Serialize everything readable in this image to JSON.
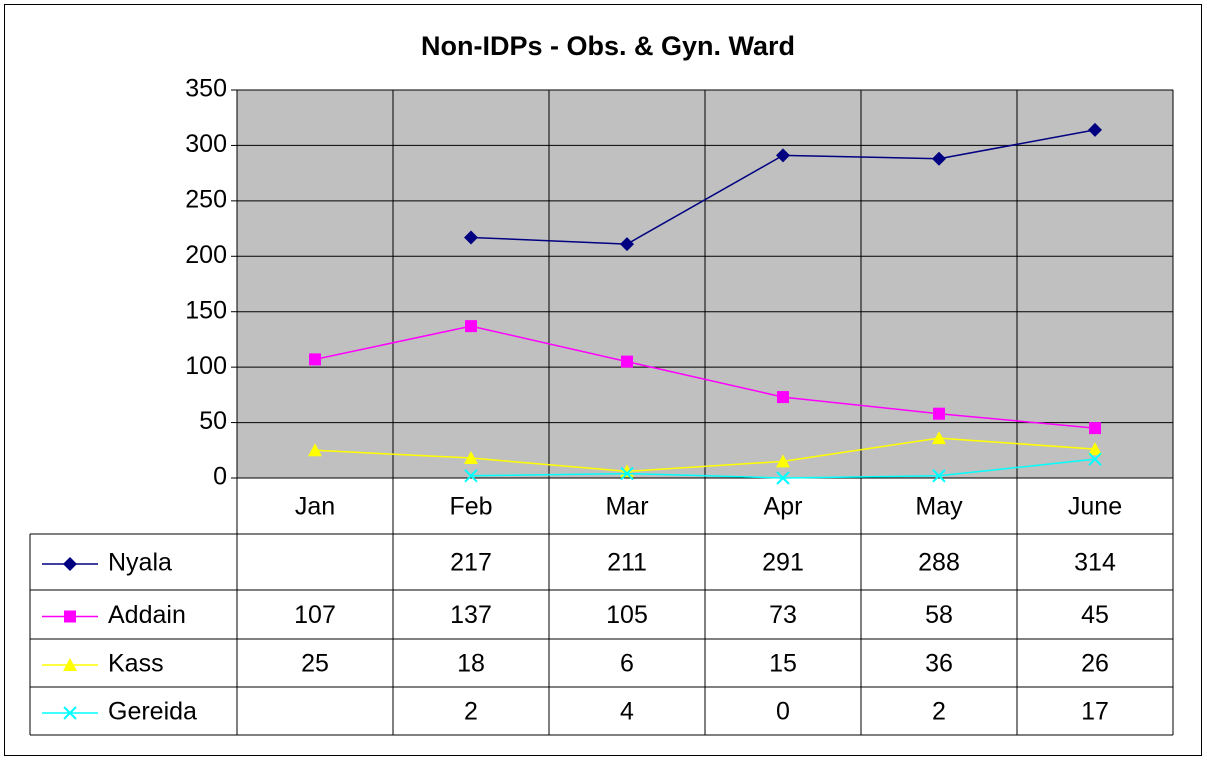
{
  "chart_data": {
    "type": "line",
    "title": "Non-IDPs  - Obs. & Gyn. Ward",
    "categories": [
      "Jan",
      "Feb",
      "Mar",
      "Apr",
      "May",
      "June"
    ],
    "series": [
      {
        "name": "Nyala",
        "color": "#000080",
        "marker": "diamond",
        "values": [
          null,
          217,
          211,
          291,
          288,
          314
        ]
      },
      {
        "name": "Addain",
        "color": "#ff00ff",
        "marker": "square",
        "values": [
          107,
          137,
          105,
          73,
          58,
          45
        ]
      },
      {
        "name": "Kass",
        "color": "#ffff00",
        "marker": "triangle",
        "values": [
          25,
          18,
          6,
          15,
          36,
          26
        ]
      },
      {
        "name": "Gereida",
        "color": "#00ffff",
        "marker": "x",
        "values": [
          null,
          2,
          4,
          0,
          2,
          17
        ]
      }
    ],
    "ylim": [
      0,
      350
    ],
    "yticks": [
      0,
      50,
      100,
      150,
      200,
      250,
      300,
      350
    ],
    "grid": true,
    "plot_background": "#c0c0c0",
    "data_table": true
  }
}
